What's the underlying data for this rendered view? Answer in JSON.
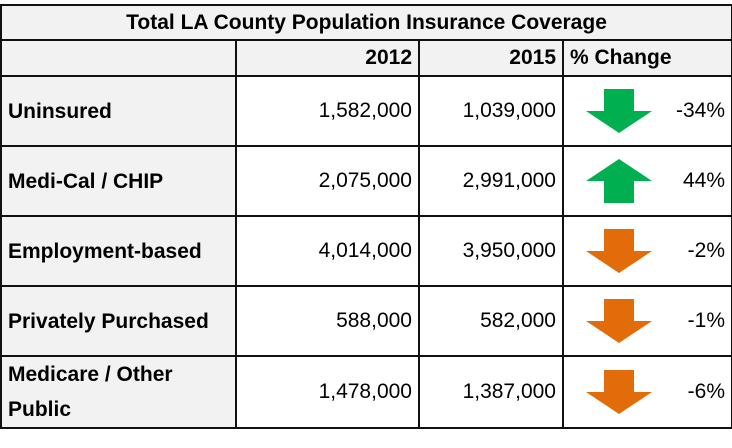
{
  "chart_data": {
    "type": "table",
    "title": "Total LA County Population Insurance Coverage",
    "columns": [
      "",
      "2012",
      "2015",
      "% Change"
    ],
    "rows": [
      {
        "label": "Uninsured",
        "y2012": "1,582,000",
        "y2015": "1,039,000",
        "change": "-34%",
        "direction": "down",
        "arrow_color": "#00b050"
      },
      {
        "label": "Medi-Cal / CHIP",
        "y2012": "2,075,000",
        "y2015": "2,991,000",
        "change": "44%",
        "direction": "up",
        "arrow_color": "#00b050"
      },
      {
        "label": "Employment-based",
        "y2012": "4,014,000",
        "y2015": "3,950,000",
        "change": "-2%",
        "direction": "down",
        "arrow_color": "#e36c0a"
      },
      {
        "label": "Privately Purchased",
        "y2012": "588,000",
        "y2015": "582,000",
        "change": "-1%",
        "direction": "down",
        "arrow_color": "#e36c0a"
      },
      {
        "label": "Medicare / Other Public",
        "y2012": "1,478,000",
        "y2015": "1,387,000",
        "change": "-6%",
        "direction": "down",
        "arrow_color": "#e36c0a"
      }
    ]
  }
}
